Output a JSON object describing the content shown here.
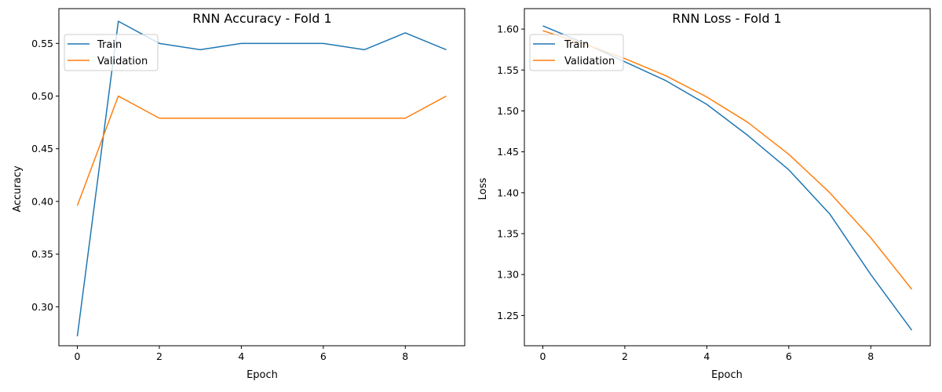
{
  "colors": {
    "train": "#1f77b4",
    "validation": "#ff7f0e"
  },
  "chart_data": [
    {
      "type": "line",
      "title": "RNN Accuracy - Fold 1",
      "xlabel": "Epoch",
      "ylabel": "Accuracy",
      "x": [
        0,
        1,
        2,
        3,
        4,
        5,
        6,
        7,
        8,
        9
      ],
      "xlim": [
        -0.45,
        9.45
      ],
      "ylim": [
        0.263,
        0.583
      ],
      "xticks": [
        0,
        2,
        4,
        6,
        8
      ],
      "xtick_labels": [
        "0",
        "2",
        "4",
        "6",
        "8"
      ],
      "yticks": [
        0.3,
        0.35,
        0.4,
        0.45,
        0.5,
        0.55
      ],
      "ytick_labels": [
        "0.30",
        "0.35",
        "0.40",
        "0.45",
        "0.50",
        "0.55"
      ],
      "grid": false,
      "legend": "upper left",
      "series": [
        {
          "name": "Train",
          "color": "#1f77b4",
          "values": [
            0.272,
            0.571,
            0.55,
            0.544,
            0.55,
            0.55,
            0.55,
            0.544,
            0.56,
            0.544
          ]
        },
        {
          "name": "Validation",
          "color": "#ff7f0e",
          "values": [
            0.396,
            0.5,
            0.479,
            0.479,
            0.479,
            0.479,
            0.479,
            0.479,
            0.479,
            0.5
          ]
        }
      ]
    },
    {
      "type": "line",
      "title": "RNN Loss - Fold 1",
      "xlabel": "Epoch",
      "ylabel": "Loss",
      "x": [
        0,
        1,
        2,
        3,
        4,
        5,
        6,
        7,
        8,
        9
      ],
      "xlim": [
        -0.45,
        9.45
      ],
      "ylim": [
        1.213,
        1.625
      ],
      "xticks": [
        0,
        2,
        4,
        6,
        8
      ],
      "xtick_labels": [
        "0",
        "2",
        "4",
        "6",
        "8"
      ],
      "yticks": [
        1.25,
        1.3,
        1.35,
        1.4,
        1.45,
        1.5,
        1.55,
        1.6
      ],
      "ytick_labels": [
        "1.25",
        "1.30",
        "1.35",
        "1.40",
        "1.45",
        "1.50",
        "1.55",
        "1.60"
      ],
      "grid": false,
      "legend": "upper left",
      "series": [
        {
          "name": "Train",
          "color": "#1f77b4",
          "values": [
            1.604,
            1.583,
            1.56,
            1.537,
            1.508,
            1.47,
            1.428,
            1.374,
            1.3,
            1.232
          ]
        },
        {
          "name": "Validation",
          "color": "#ff7f0e",
          "values": [
            1.598,
            1.582,
            1.564,
            1.543,
            1.517,
            1.486,
            1.447,
            1.4,
            1.345,
            1.282
          ]
        }
      ]
    }
  ]
}
